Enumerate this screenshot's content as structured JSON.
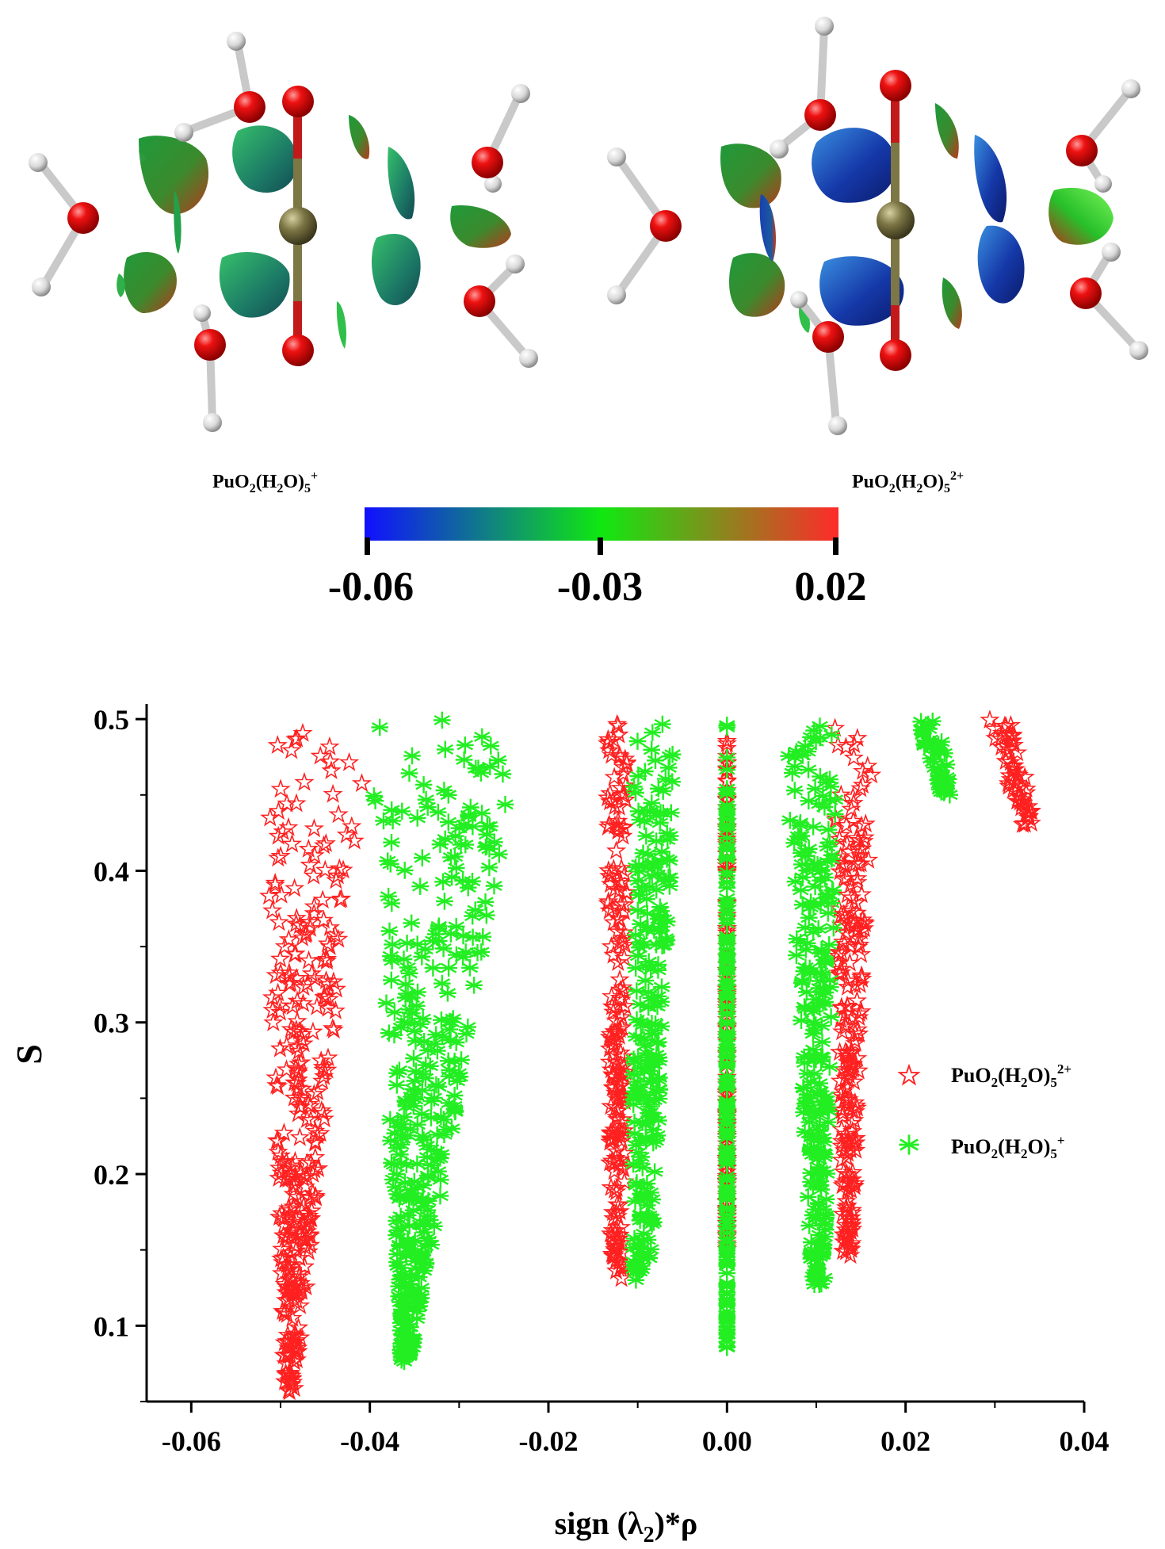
{
  "molecules": {
    "left_label": {
      "base": "PuO",
      "s1": "2",
      "mid": "(H",
      "s2": "2",
      "end": "O)",
      "s3": "5",
      "charge": "+"
    },
    "right_label": {
      "base": "PuO",
      "s1": "2",
      "mid": "(H",
      "s2": "2",
      "end": "O)",
      "s3": "5",
      "charge": "2+"
    }
  },
  "colorbar": {
    "ticks": [
      "-0.06",
      "-0.03",
      "0.02"
    ],
    "colors": [
      "#1010ff",
      "#10e810",
      "#ff2a2a"
    ]
  },
  "chart_data": {
    "type": "scatter",
    "xlabel": {
      "pre": "sign (λ",
      "sub": "2",
      "post": ")*ρ"
    },
    "ylabel": "S",
    "xlim": [
      -0.065,
      0.04
    ],
    "ylim": [
      0.05,
      0.51
    ],
    "xticks": [
      -0.06,
      -0.04,
      -0.02,
      0.0,
      0.02,
      0.04
    ],
    "xtick_labels": [
      "-0.06",
      "-0.04",
      "-0.02",
      "0.00",
      "0.02",
      "0.04"
    ],
    "yticks": [
      0.1,
      0.2,
      0.3,
      0.4,
      0.5
    ],
    "ytick_labels": [
      "0.1",
      "0.2",
      "0.3",
      "0.4",
      "0.5"
    ],
    "legend_position": "right",
    "series": [
      {
        "name": {
          "base": "PuO",
          "s1": "2",
          "mid": "(H",
          "s2": "2",
          "end": "O)",
          "s3": "5",
          "charge": "2+"
        },
        "marker": "star",
        "color": "#ff2020",
        "clusters": [
          {
            "x_at_top": [
              -0.052,
              -0.04
            ],
            "x_at_bottom": [
              -0.0495,
              -0.0485
            ],
            "y_range": [
              0.055,
              0.5
            ]
          },
          {
            "x_at_top": [
              -0.0135,
              -0.011
            ],
            "x_at_bottom": [
              -0.013,
              -0.0115
            ],
            "y_range": [
              0.13,
              0.5
            ]
          },
          {
            "x_at_top": [
              0.0,
              0.0
            ],
            "x_at_bottom": [
              0.0,
              0.0
            ],
            "y_range": [
              0.15,
              0.5
            ]
          },
          {
            "x_at_top": [
              0.012,
              0.0165
            ],
            "x_at_bottom": [
              0.013,
              0.014
            ],
            "y_range": [
              0.145,
              0.5
            ]
          },
          {
            "x_at_top": [
              0.029,
              0.032
            ],
            "x_at_bottom": [
              0.033,
              0.0345
            ],
            "y_range": [
              0.43,
              0.5
            ]
          }
        ]
      },
      {
        "name": {
          "base": "PuO",
          "s1": "2",
          "mid": "(H",
          "s2": "2",
          "end": "O)",
          "s3": "5",
          "charge": "+"
        },
        "marker": "asterisk",
        "color": "#22ee22",
        "clusters": [
          {
            "x_at_top": [
              -0.04,
              -0.0225
            ],
            "x_at_bottom": [
              -0.0365,
              -0.0355
            ],
            "y_range": [
              0.075,
              0.5
            ]
          },
          {
            "x_at_top": [
              -0.0105,
              -0.0055
            ],
            "x_at_bottom": [
              -0.0105,
              -0.0085
            ],
            "y_range": [
              0.13,
              0.5
            ]
          },
          {
            "x_at_top": [
              0.0,
              0.0
            ],
            "x_at_bottom": [
              0.0,
              0.0
            ],
            "y_range": [
              0.085,
              0.5
            ]
          },
          {
            "x_at_top": [
              0.0065,
              0.0125
            ],
            "x_at_bottom": [
              0.0095,
              0.011
            ],
            "y_range": [
              0.125,
              0.5
            ]
          },
          {
            "x_at_top": [
              0.021,
              0.024
            ],
            "x_at_bottom": [
              0.024,
              0.025
            ],
            "y_range": [
              0.45,
              0.5
            ]
          }
        ]
      }
    ]
  }
}
